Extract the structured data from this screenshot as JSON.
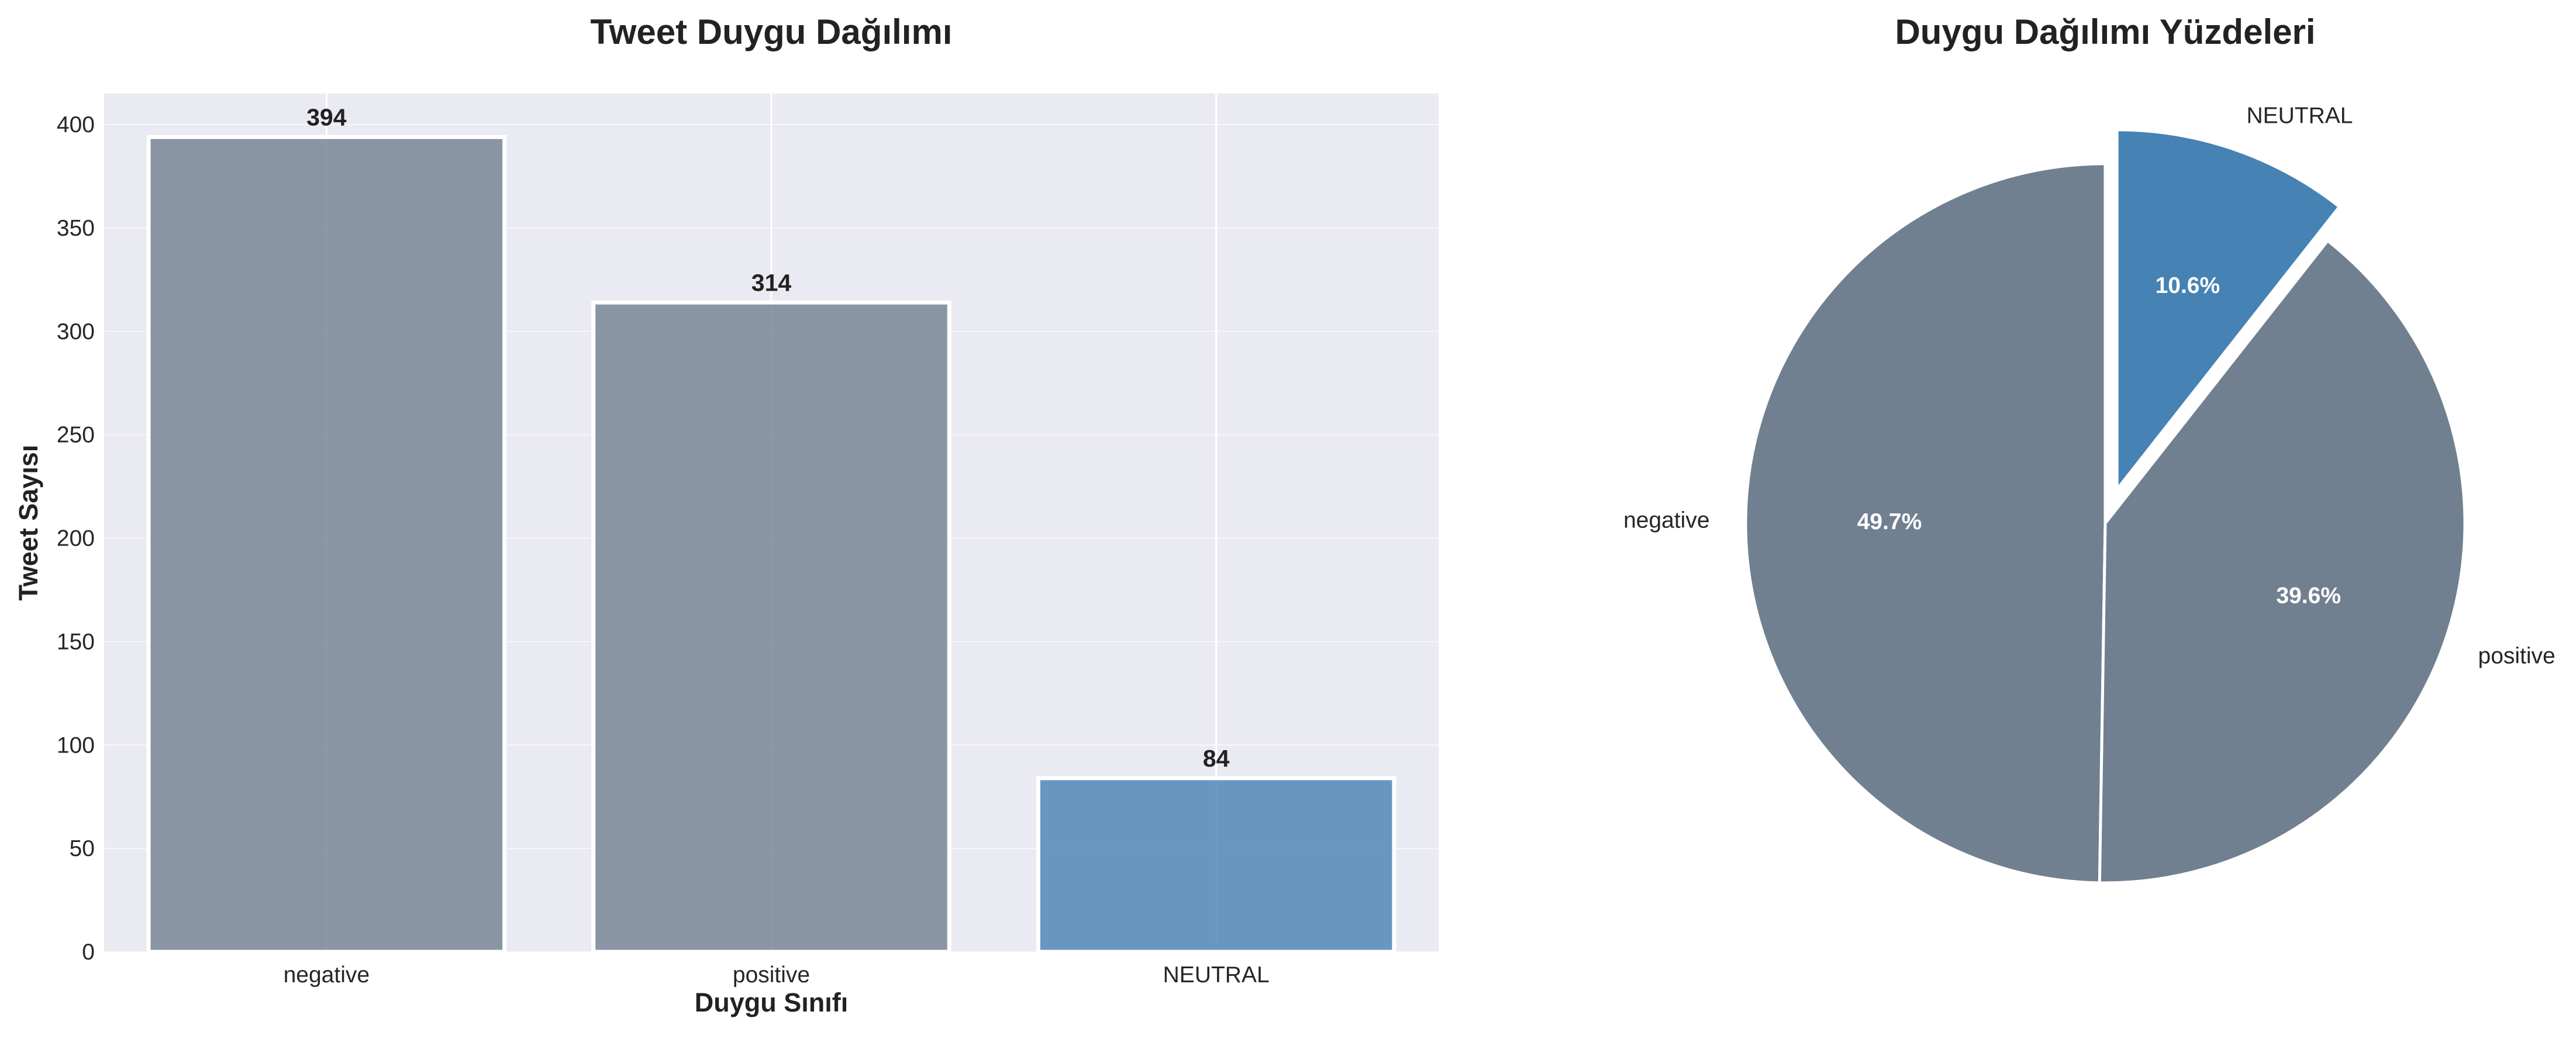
{
  "chart_data": [
    {
      "type": "bar",
      "title": "Tweet Duygu Dağılımı",
      "xlabel": "Duygu Sınıfı",
      "ylabel": "Tweet Sayısı",
      "categories": [
        "negative",
        "positive",
        "NEUTRAL"
      ],
      "values": [
        394,
        314,
        84
      ],
      "value_labels": [
        "394",
        "314",
        "84"
      ],
      "colors": [
        "#708090",
        "#708090",
        "#4682B4"
      ],
      "ylim": [
        0,
        415
      ],
      "yticks": [
        0,
        50,
        100,
        150,
        200,
        250,
        300,
        350,
        400
      ],
      "ytick_labels": [
        "0",
        "50",
        "100",
        "150",
        "200",
        "250",
        "300",
        "350",
        "400"
      ],
      "grid": true
    },
    {
      "type": "pie",
      "title": "Duygu Dağılımı Yüzdeleri",
      "labels": [
        "negative",
        "positive",
        "NEUTRAL"
      ],
      "values": [
        49.7,
        39.6,
        10.6
      ],
      "pct_labels": [
        "49.7%",
        "39.6%",
        "10.6%"
      ],
      "colors": [
        "#708090",
        "#708090",
        "#4682B4"
      ],
      "exploded": [
        "NEUTRAL"
      ]
    }
  ]
}
